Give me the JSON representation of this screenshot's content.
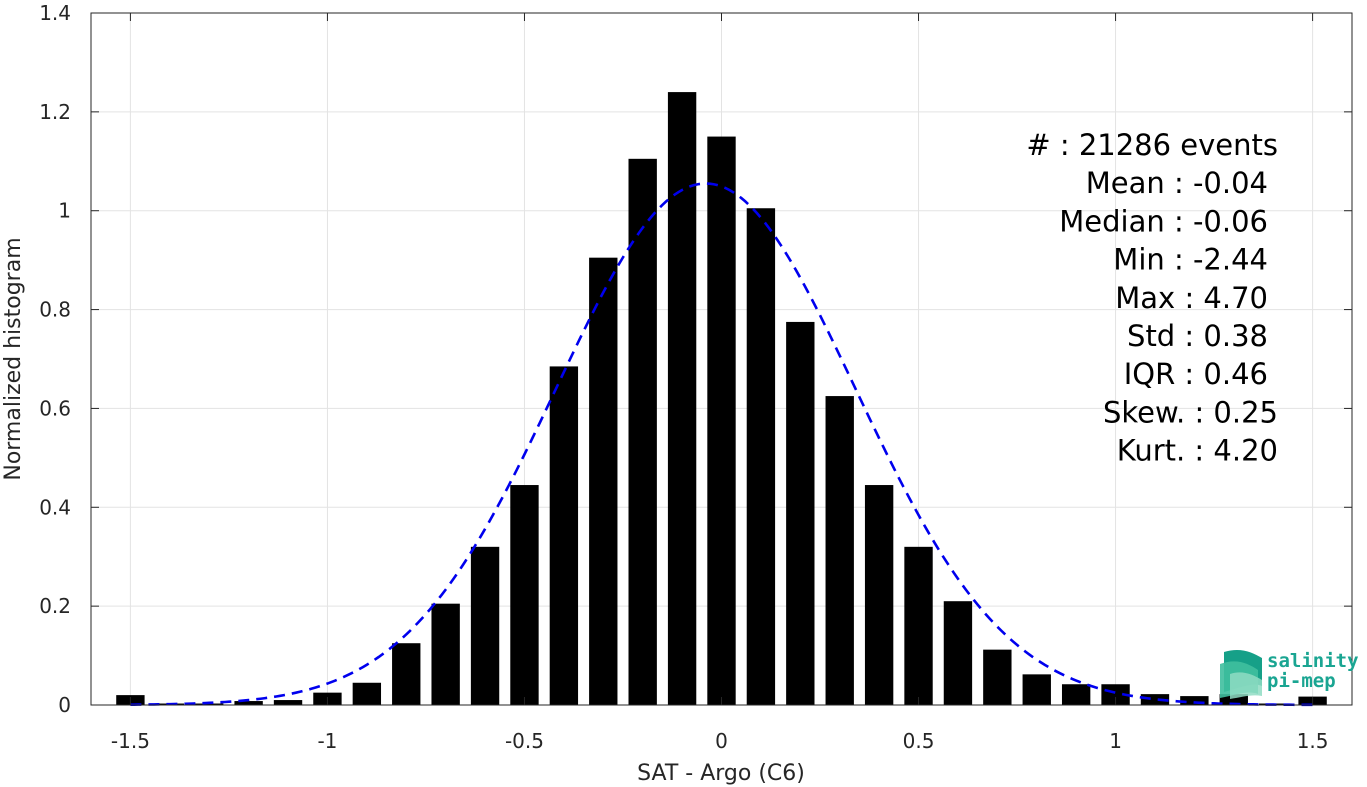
{
  "chart_data": {
    "type": "bar",
    "xlabel": "SAT - Argo (C6)",
    "ylabel": "Normalized histogram",
    "xlim": [
      -1.6,
      1.6
    ],
    "ylim": [
      0,
      1.4
    ],
    "xticks": [
      -1.5,
      -1,
      -0.5,
      0,
      0.5,
      1,
      1.5
    ],
    "xtick_labels": [
      "-1.5",
      "-1",
      "-0.5",
      "0",
      "0.5",
      "1",
      "1.5"
    ],
    "yticks": [
      0,
      0.2,
      0.4,
      0.6,
      0.8,
      1,
      1.2,
      1.4
    ],
    "ytick_labels": [
      "0",
      "0.2",
      "0.4",
      "0.6",
      "0.8",
      "1",
      "1.2",
      "1.4"
    ],
    "grid": true,
    "bar_color": "#000000",
    "bin_width": 0.1,
    "x": [
      -1.5,
      -1.4,
      -1.3,
      -1.2,
      -1.1,
      -1.0,
      -0.9,
      -0.8,
      -0.7,
      -0.6,
      -0.5,
      -0.4,
      -0.3,
      -0.2,
      -0.1,
      0.0,
      0.1,
      0.2,
      0.3,
      0.4,
      0.5,
      0.6,
      0.7,
      0.8,
      0.9,
      1.0,
      1.1,
      1.2,
      1.3,
      1.4,
      1.5
    ],
    "values": [
      0.02,
      0.003,
      0.003,
      0.008,
      0.01,
      0.025,
      0.045,
      0.125,
      0.205,
      0.32,
      0.445,
      0.685,
      0.905,
      1.105,
      1.24,
      1.15,
      1.005,
      0.775,
      0.625,
      0.445,
      0.32,
      0.21,
      0.112,
      0.062,
      0.042,
      0.042,
      0.022,
      0.018,
      0.022,
      0.003,
      0.017
    ],
    "fit": {
      "type": "normal",
      "mean": -0.04,
      "std": 0.38,
      "peak": 1.055,
      "color": "#0000ee",
      "style": "dashed"
    },
    "annotations": [
      "#  : 21286 events",
      "Mean : -0.04",
      "Median : -0.06",
      "Min : -2.44",
      "Max : 4.70",
      "Std : 0.38",
      "IQR : 0.46",
      "Skew. : 0.25",
      "Kurt. : 4.20"
    ]
  },
  "logo": {
    "line1": "salinity",
    "line2": "pi-mep",
    "color": "#1aa592"
  }
}
